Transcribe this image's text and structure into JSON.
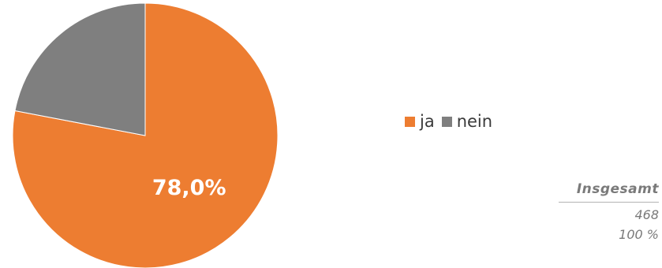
{
  "chart_data": {
    "type": "pie",
    "slices": [
      {
        "label": "ja",
        "value": 78.0,
        "color": "#ED7D31"
      },
      {
        "label": "nein",
        "value": 22.0,
        "color": "#7F7F7F"
      }
    ],
    "data_labels": [
      "78,0%"
    ],
    "legend": [
      "ja",
      "nein"
    ],
    "legend_position": "right"
  },
  "summary": {
    "header": "Insgesamt",
    "count": "468",
    "percent": "100 %"
  }
}
